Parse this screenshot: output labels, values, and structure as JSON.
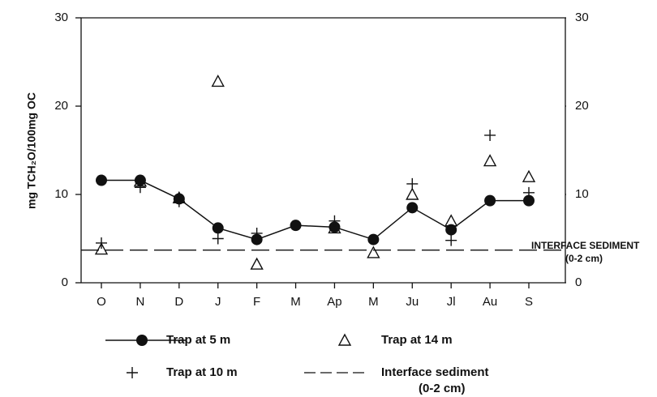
{
  "chart_data": {
    "type": "line",
    "ylabel": "mg TCH₂O/100mg OC",
    "categories": [
      "O",
      "N",
      "D",
      "J",
      "F",
      "M",
      "Ap",
      "M",
      "Ju",
      "Jl",
      "Au",
      "S"
    ],
    "ylim": [
      0,
      30
    ],
    "yticks": [
      0,
      10,
      20,
      30
    ],
    "y2lim": [
      0,
      30
    ],
    "y2ticks": [
      0,
      10,
      20,
      30
    ],
    "series": [
      {
        "name": "Trap at 5 m",
        "color": "#111111",
        "marker": "circle",
        "line": true,
        "values": [
          11.6,
          11.6,
          9.5,
          6.2,
          4.9,
          6.5,
          6.3,
          4.9,
          8.5,
          6.0,
          9.3,
          9.3
        ]
      },
      {
        "name": "Trap at 14 m",
        "color": "#111111",
        "marker": "triangle",
        "line": false,
        "values": [
          3.8,
          11.5,
          9.6,
          22.8,
          2.1,
          null,
          6.2,
          3.4,
          10.0,
          7.0,
          13.8,
          12.0
        ]
      },
      {
        "name": "Trap at 10 m",
        "color": "#111111",
        "marker": "plus",
        "line": false,
        "values": [
          4.5,
          10.8,
          9.2,
          5.0,
          5.6,
          null,
          7.0,
          null,
          11.2,
          4.8,
          16.7,
          10.2
        ]
      }
    ],
    "reference": {
      "name": [
        "Interface sediment",
        "(0-2 cm)"
      ],
      "label": [
        "INTERFACE SEDIMENT",
        "(0-2 cm)"
      ],
      "value": 3.7,
      "color": "#111111"
    }
  }
}
